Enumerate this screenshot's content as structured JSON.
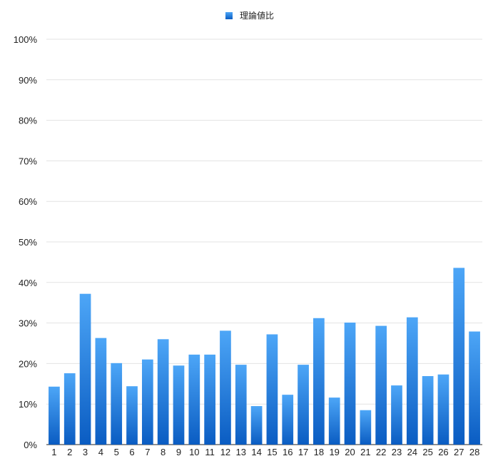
{
  "chart_data": {
    "type": "bar",
    "title": "",
    "xlabel": "",
    "ylabel": "",
    "ylim": [
      0,
      100
    ],
    "y_ticks": [
      0,
      10,
      20,
      30,
      40,
      50,
      60,
      70,
      80,
      90,
      100
    ],
    "y_tick_suffix": "%",
    "grid": true,
    "legend_position": "top-center",
    "bar_color_top": "#4da6f7",
    "bar_color_bottom": "#0a5cc2",
    "categories": [
      "1",
      "2",
      "3",
      "4",
      "5",
      "6",
      "7",
      "8",
      "9",
      "10",
      "11",
      "12",
      "13",
      "14",
      "15",
      "16",
      "17",
      "18",
      "19",
      "20",
      "21",
      "22",
      "23",
      "24",
      "25",
      "26",
      "27",
      "28"
    ],
    "series": [
      {
        "name": "理論値比",
        "values": [
          14.3,
          17.6,
          37.2,
          26.3,
          20.1,
          14.4,
          21.0,
          26.0,
          19.5,
          22.2,
          22.2,
          28.1,
          19.7,
          9.5,
          27.2,
          12.3,
          19.7,
          31.2,
          11.6,
          30.1,
          8.5,
          29.3,
          14.6,
          31.4,
          16.9,
          17.3,
          43.6,
          27.9
        ]
      }
    ]
  }
}
